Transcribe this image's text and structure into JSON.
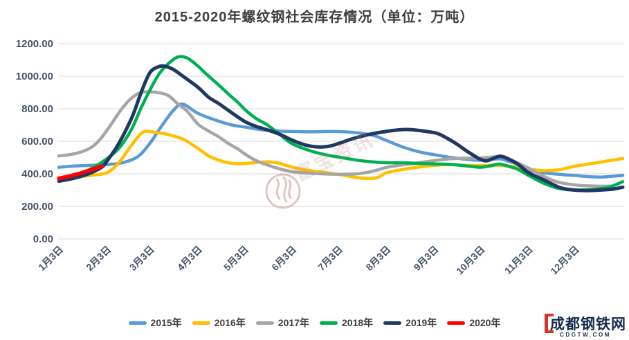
{
  "title": "2015-2020年螺纹钢社会库存情况（单位：万吨）",
  "watermark": {
    "text": "富宝资讯"
  },
  "logo": {
    "text": "成都钢铁网",
    "sub": "CDGTW.COM"
  },
  "chart_data": {
    "type": "line",
    "title": "2015-2020年螺纹钢社会库存情况（单位：万吨）",
    "ylabel": "万吨",
    "ylim": [
      0,
      1200
    ],
    "grid": "horizontal",
    "legend_position": "bottom",
    "y_ticks": [
      0,
      200,
      400,
      600,
      800,
      1000,
      1200
    ],
    "y_tick_labels": [
      "0.00",
      "200.00",
      "400.00",
      "600.00",
      "800.00",
      "1000.00",
      "1200.00"
    ],
    "x_axis": [
      {
        "label": "1月3日",
        "day": 3
      },
      {
        "label": "2月3日",
        "day": 34
      },
      {
        "label": "3月3日",
        "day": 62
      },
      {
        "label": "4月3日",
        "day": 93
      },
      {
        "label": "5月3日",
        "day": 123
      },
      {
        "label": "6月3日",
        "day": 154
      },
      {
        "label": "7月3日",
        "day": 184
      },
      {
        "label": "8月3日",
        "day": 215
      },
      {
        "label": "9月3日",
        "day": 246
      },
      {
        "label": "10月3日",
        "day": 276
      },
      {
        "label": "11月3日",
        "day": 307
      },
      {
        "label": "12月3日",
        "day": 337
      }
    ],
    "series": [
      {
        "name": "2015年",
        "color": "#5B9BD5",
        "width": 4.5,
        "points": [
          [
            3,
            440
          ],
          [
            13,
            448
          ],
          [
            24,
            452
          ],
          [
            34,
            457
          ],
          [
            44,
            468
          ],
          [
            54,
            505
          ],
          [
            62,
            588
          ],
          [
            70,
            700
          ],
          [
            77,
            788
          ],
          [
            83,
            828
          ],
          [
            93,
            772
          ],
          [
            105,
            728
          ],
          [
            115,
            700
          ],
          [
            123,
            688
          ],
          [
            135,
            670
          ],
          [
            145,
            663
          ],
          [
            154,
            660
          ],
          [
            165,
            658
          ],
          [
            177,
            660
          ],
          [
            188,
            658
          ],
          [
            198,
            650
          ],
          [
            207,
            635
          ],
          [
            215,
            605
          ],
          [
            227,
            560
          ],
          [
            237,
            533
          ],
          [
            246,
            518
          ],
          [
            257,
            500
          ],
          [
            267,
            489
          ],
          [
            273,
            484
          ],
          [
            281,
            486
          ],
          [
            288,
            492
          ],
          [
            294,
            478
          ],
          [
            300,
            458
          ],
          [
            307,
            424
          ],
          [
            315,
            408
          ],
          [
            323,
            400
          ],
          [
            330,
            394
          ],
          [
            337,
            390
          ],
          [
            345,
            383
          ],
          [
            353,
            380
          ],
          [
            360,
            384
          ],
          [
            368,
            390
          ]
        ]
      },
      {
        "name": "2016年",
        "color": "#FFC000",
        "width": 4.5,
        "points": [
          [
            3,
            365
          ],
          [
            13,
            378
          ],
          [
            24,
            391
          ],
          [
            34,
            406
          ],
          [
            42,
            470
          ],
          [
            50,
            575
          ],
          [
            56,
            645
          ],
          [
            60,
            662
          ],
          [
            65,
            655
          ],
          [
            72,
            645
          ],
          [
            79,
            628
          ],
          [
            85,
            605
          ],
          [
            93,
            556
          ],
          [
            100,
            510
          ],
          [
            107,
            482
          ],
          [
            114,
            466
          ],
          [
            121,
            462
          ],
          [
            129,
            468
          ],
          [
            137,
            473
          ],
          [
            145,
            466
          ],
          [
            154,
            441
          ],
          [
            165,
            420
          ],
          [
            176,
            407
          ],
          [
            186,
            394
          ],
          [
            196,
            377
          ],
          [
            204,
            371
          ],
          [
            210,
            380
          ],
          [
            215,
            406
          ],
          [
            225,
            426
          ],
          [
            235,
            440
          ],
          [
            246,
            452
          ],
          [
            256,
            456
          ],
          [
            266,
            452
          ],
          [
            276,
            450
          ],
          [
            286,
            452
          ],
          [
            296,
            446
          ],
          [
            307,
            429
          ],
          [
            316,
            420
          ],
          [
            326,
            424
          ],
          [
            337,
            447
          ],
          [
            348,
            463
          ],
          [
            357,
            477
          ],
          [
            368,
            494
          ]
        ]
      },
      {
        "name": "2017年",
        "color": "#A6A6A6",
        "width": 4.5,
        "points": [
          [
            3,
            510
          ],
          [
            10,
            518
          ],
          [
            17,
            533
          ],
          [
            24,
            562
          ],
          [
            30,
            615
          ],
          [
            36,
            692
          ],
          [
            43,
            790
          ],
          [
            49,
            856
          ],
          [
            55,
            896
          ],
          [
            61,
            904
          ],
          [
            68,
            898
          ],
          [
            74,
            880
          ],
          [
            80,
            830
          ],
          [
            86,
            786
          ],
          [
            93,
            706
          ],
          [
            99,
            668
          ],
          [
            106,
            630
          ],
          [
            113,
            585
          ],
          [
            119,
            552
          ],
          [
            124,
            518
          ],
          [
            131,
            480
          ],
          [
            138,
            454
          ],
          [
            146,
            430
          ],
          [
            154,
            413
          ],
          [
            165,
            404
          ],
          [
            176,
            399
          ],
          [
            187,
            397
          ],
          [
            197,
            401
          ],
          [
            207,
            418
          ],
          [
            215,
            439
          ],
          [
            226,
            456
          ],
          [
            236,
            468
          ],
          [
            246,
            481
          ],
          [
            256,
            492
          ],
          [
            266,
            496
          ],
          [
            276,
            497
          ],
          [
            286,
            505
          ],
          [
            291,
            506
          ],
          [
            297,
            480
          ],
          [
            307,
            435
          ],
          [
            316,
            388
          ],
          [
            325,
            352
          ],
          [
            333,
            337
          ],
          [
            341,
            328
          ],
          [
            352,
            324
          ],
          [
            362,
            325
          ]
        ]
      },
      {
        "name": "2018年",
        "color": "#00B050",
        "width": 4.5,
        "points": [
          [
            3,
            356
          ],
          [
            13,
            386
          ],
          [
            24,
            432
          ],
          [
            34,
            492
          ],
          [
            42,
            558
          ],
          [
            50,
            672
          ],
          [
            56,
            800
          ],
          [
            62,
            915
          ],
          [
            68,
            1015
          ],
          [
            74,
            1078
          ],
          [
            80,
            1118
          ],
          [
            86,
            1112
          ],
          [
            93,
            1062
          ],
          [
            99,
            1008
          ],
          [
            106,
            950
          ],
          [
            113,
            888
          ],
          [
            119,
            838
          ],
          [
            124,
            790
          ],
          [
            131,
            738
          ],
          [
            138,
            700
          ],
          [
            146,
            642
          ],
          [
            154,
            585
          ],
          [
            165,
            544
          ],
          [
            176,
            516
          ],
          [
            186,
            500
          ],
          [
            196,
            484
          ],
          [
            206,
            473
          ],
          [
            215,
            468
          ],
          [
            226,
            468
          ],
          [
            236,
            464
          ],
          [
            246,
            461
          ],
          [
            256,
            458
          ],
          [
            266,
            449
          ],
          [
            272,
            443
          ],
          [
            276,
            440
          ],
          [
            282,
            448
          ],
          [
            288,
            460
          ],
          [
            294,
            446
          ],
          [
            300,
            428
          ],
          [
            307,
            390
          ],
          [
            315,
            350
          ],
          [
            323,
            320
          ],
          [
            330,
            305
          ],
          [
            337,
            300
          ],
          [
            345,
            302
          ],
          [
            353,
            308
          ],
          [
            360,
            320
          ],
          [
            368,
            352
          ]
        ]
      },
      {
        "name": "2019年",
        "color": "#1F3864",
        "width": 5,
        "points": [
          [
            3,
            355
          ],
          [
            10,
            367
          ],
          [
            17,
            384
          ],
          [
            24,
            407
          ],
          [
            31,
            442
          ],
          [
            34,
            476
          ],
          [
            40,
            558
          ],
          [
            45,
            642
          ],
          [
            51,
            762
          ],
          [
            57,
            918
          ],
          [
            62,
            1022
          ],
          [
            67,
            1056
          ],
          [
            71,
            1062
          ],
          [
            77,
            1042
          ],
          [
            83,
            1002
          ],
          [
            93,
            932
          ],
          [
            100,
            870
          ],
          [
            106,
            835
          ],
          [
            113,
            788
          ],
          [
            119,
            748
          ],
          [
            124,
            718
          ],
          [
            131,
            690
          ],
          [
            138,
            670
          ],
          [
            146,
            643
          ],
          [
            154,
            607
          ],
          [
            163,
            576
          ],
          [
            171,
            565
          ],
          [
            178,
            570
          ],
          [
            184,
            586
          ],
          [
            193,
            615
          ],
          [
            203,
            640
          ],
          [
            211,
            655
          ],
          [
            219,
            666
          ],
          [
            226,
            672
          ],
          [
            233,
            670
          ],
          [
            241,
            660
          ],
          [
            248,
            648
          ],
          [
            255,
            615
          ],
          [
            261,
            580
          ],
          [
            267,
            540
          ],
          [
            272,
            510
          ],
          [
            276,
            488
          ],
          [
            280,
            480
          ],
          [
            285,
            498
          ],
          [
            289,
            508
          ],
          [
            294,
            490
          ],
          [
            300,
            460
          ],
          [
            307,
            407
          ],
          [
            314,
            375
          ],
          [
            320,
            348
          ],
          [
            326,
            320
          ],
          [
            331,
            307
          ],
          [
            337,
            300
          ],
          [
            344,
            297
          ],
          [
            351,
            299
          ],
          [
            358,
            303
          ],
          [
            363,
            308
          ],
          [
            368,
            318
          ]
        ]
      },
      {
        "name": "2020年",
        "color": "#FF0000",
        "width": 5.5,
        "points": [
          [
            3,
            372
          ],
          [
            10,
            386
          ],
          [
            17,
            404
          ],
          [
            24,
            425
          ],
          [
            31,
            448
          ]
        ]
      }
    ]
  }
}
